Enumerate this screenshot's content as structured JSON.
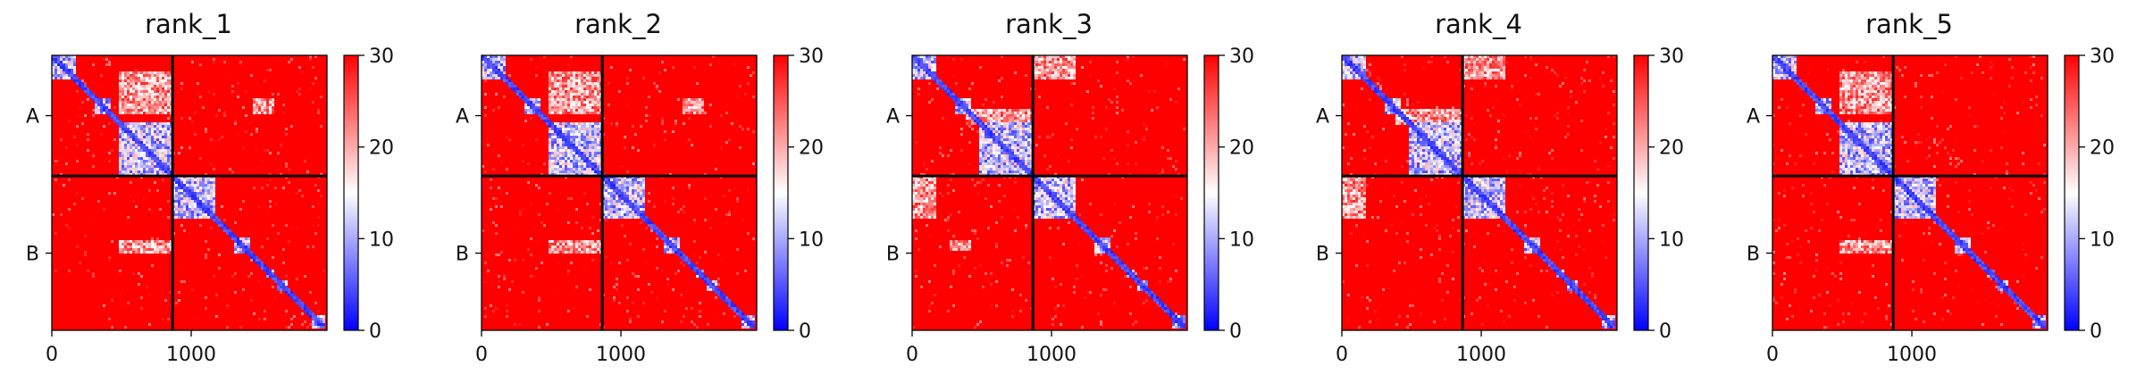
{
  "chart_data": [
    {
      "type": "heatmap",
      "title": "rank_1",
      "row_labels": [
        "A",
        "B"
      ],
      "x_ticks": [
        0,
        1000
      ],
      "x_tick_labels": [
        "0",
        "1000"
      ],
      "xlim": [
        0,
        1974
      ],
      "chain_break": 866,
      "colorbar": {
        "min": 0,
        "max": 30,
        "ticks": [
          0,
          10,
          20,
          30
        ],
        "tick_labels": [
          "0",
          "10",
          "20",
          "30"
        ],
        "colors": [
          "#0000ff",
          "#ffffff",
          "#ff0000"
        ]
      },
      "low_value_blocks": [
        [
          0,
          170
        ],
        [
          300,
          420
        ],
        [
          490,
          870
        ],
        [
          870,
          1180
        ],
        [
          1320,
          1440
        ],
        [
          1540,
          1600
        ],
        [
          1620,
          1700
        ],
        [
          1780,
          1820
        ],
        [
          1880,
          1974
        ]
      ],
      "off_diagonal_contacts": [
        [
          490,
          870,
          120,
          420
        ],
        [
          1450,
          1600,
          300,
          420
        ],
        [
          490,
          870,
          1340,
          1430
        ]
      ]
    },
    {
      "type": "heatmap",
      "title": "rank_2",
      "row_labels": [
        "A",
        "B"
      ],
      "x_ticks": [
        0,
        1000
      ],
      "x_tick_labels": [
        "0",
        "1000"
      ],
      "xlim": [
        0,
        1974
      ],
      "chain_break": 866,
      "colorbar": {
        "min": 0,
        "max": 30,
        "ticks": [
          0,
          10,
          20,
          30
        ],
        "tick_labels": [
          "0",
          "10",
          "20",
          "30"
        ],
        "colors": [
          "#0000ff",
          "#ffffff",
          "#ff0000"
        ]
      },
      "low_value_blocks": [
        [
          0,
          170
        ],
        [
          300,
          420
        ],
        [
          490,
          870
        ],
        [
          870,
          1180
        ],
        [
          1320,
          1440
        ],
        [
          1540,
          1600
        ],
        [
          1620,
          1700
        ],
        [
          1780,
          1820
        ],
        [
          1880,
          1974
        ]
      ],
      "off_diagonal_contacts": [
        [
          490,
          870,
          120,
          420
        ],
        [
          1450,
          1600,
          300,
          420
        ],
        [
          490,
          870,
          1340,
          1430
        ]
      ]
    },
    {
      "type": "heatmap",
      "title": "rank_3",
      "row_labels": [
        "A",
        "B"
      ],
      "x_ticks": [
        0,
        1000
      ],
      "x_tick_labels": [
        "0",
        "1000"
      ],
      "xlim": [
        0,
        1974
      ],
      "chain_break": 866,
      "colorbar": {
        "min": 0,
        "max": 30,
        "ticks": [
          0,
          10,
          20,
          30
        ],
        "tick_labels": [
          "0",
          "10",
          "20",
          "30"
        ],
        "colors": [
          "#0000ff",
          "#ffffff",
          "#ff0000"
        ]
      },
      "low_value_blocks": [
        [
          0,
          170
        ],
        [
          300,
          420
        ],
        [
          490,
          870
        ],
        [
          870,
          1180
        ],
        [
          1320,
          1440
        ],
        [
          1540,
          1600
        ],
        [
          1620,
          1700
        ],
        [
          1780,
          1820
        ],
        [
          1880,
          1974
        ]
      ],
      "off_diagonal_contacts": [
        [
          880,
          1180,
          0,
          170
        ],
        [
          0,
          170,
          880,
          1180
        ],
        [
          380,
          870,
          380,
          500
        ],
        [
          280,
          420,
          1330,
          1420
        ]
      ]
    },
    {
      "type": "heatmap",
      "title": "rank_4",
      "row_labels": [
        "A",
        "B"
      ],
      "x_ticks": [
        0,
        1000
      ],
      "x_tick_labels": [
        "0",
        "1000"
      ],
      "xlim": [
        0,
        1974
      ],
      "chain_break": 866,
      "colorbar": {
        "min": 0,
        "max": 30,
        "ticks": [
          0,
          10,
          20,
          30
        ],
        "tick_labels": [
          "0",
          "10",
          "20",
          "30"
        ],
        "colors": [
          "#0000ff",
          "#ffffff",
          "#ff0000"
        ]
      },
      "low_value_blocks": [
        [
          0,
          170
        ],
        [
          300,
          420
        ],
        [
          490,
          870
        ],
        [
          870,
          1180
        ],
        [
          1320,
          1440
        ],
        [
          1540,
          1600
        ],
        [
          1620,
          1700
        ],
        [
          1780,
          1820
        ],
        [
          1880,
          1974
        ]
      ],
      "off_diagonal_contacts": [
        [
          880,
          1180,
          0,
          170
        ],
        [
          0,
          170,
          880,
          1180
        ],
        [
          380,
          870,
          380,
          500
        ]
      ]
    },
    {
      "type": "heatmap",
      "title": "rank_5",
      "row_labels": [
        "A",
        "B"
      ],
      "x_ticks": [
        0,
        1000
      ],
      "x_tick_labels": [
        "0",
        "1000"
      ],
      "xlim": [
        0,
        1974
      ],
      "chain_break": 866,
      "colorbar": {
        "min": 0,
        "max": 30,
        "ticks": [
          0,
          10,
          20,
          30
        ],
        "tick_labels": [
          "0",
          "10",
          "20",
          "30"
        ],
        "colors": [
          "#0000ff",
          "#ffffff",
          "#ff0000"
        ]
      },
      "low_value_blocks": [
        [
          0,
          170
        ],
        [
          300,
          420
        ],
        [
          490,
          870
        ],
        [
          870,
          1180
        ],
        [
          1320,
          1440
        ],
        [
          1540,
          1600
        ],
        [
          1620,
          1700
        ],
        [
          1780,
          1820
        ],
        [
          1880,
          1974
        ]
      ],
      "off_diagonal_contacts": [
        [
          490,
          870,
          120,
          420
        ],
        [
          490,
          870,
          1340,
          1430
        ]
      ]
    }
  ]
}
